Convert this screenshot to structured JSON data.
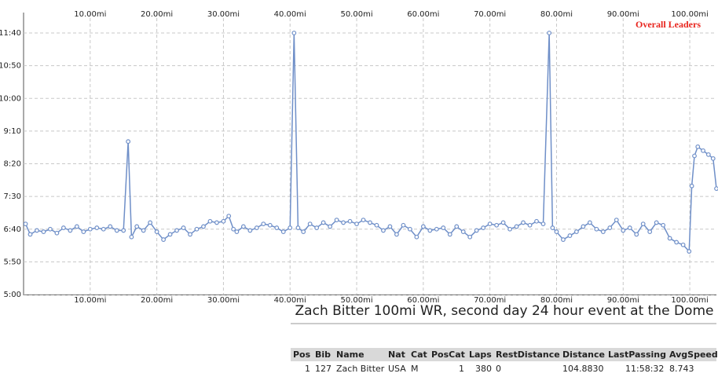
{
  "chart_data": {
    "type": "line",
    "caption": "Zach Bitter 100mi WR, second day 24 hour event at the Dome",
    "xlim": [
      0,
      104
    ],
    "xticks": [
      {
        "value": 10,
        "label": "10.00mi"
      },
      {
        "value": 20,
        "label": "20.00mi"
      },
      {
        "value": 30,
        "label": "30.00mi"
      },
      {
        "value": 40,
        "label": "40.00mi"
      },
      {
        "value": 50,
        "label": "50.00mi"
      },
      {
        "value": 60,
        "label": "60.00mi"
      },
      {
        "value": 70,
        "label": "70.00mi"
      },
      {
        "value": 80,
        "label": "80.00mi"
      },
      {
        "value": 90,
        "label": "90.00mi"
      },
      {
        "value": 100,
        "label": "100.00mi"
      }
    ],
    "ylim": [
      300,
      700
    ],
    "yticks": [
      {
        "value": 300,
        "label": "5:00"
      },
      {
        "value": 350,
        "label": "5:50"
      },
      {
        "value": 400,
        "label": "6:40"
      },
      {
        "value": 450,
        "label": "7:30"
      },
      {
        "value": 500,
        "label": "8:20"
      },
      {
        "value": 550,
        "label": "9:10"
      },
      {
        "value": 600,
        "label": "10:00"
      },
      {
        "value": 650,
        "label": "10:50"
      },
      {
        "value": 700,
        "label": "11:40"
      }
    ],
    "grid": true,
    "legend_color": "#e8231c",
    "series": [
      {
        "name": "Overall Leaders",
        "color": "#6f8fc8",
        "x": [
          0.3,
          1,
          2,
          3,
          4,
          5,
          6,
          7,
          8,
          9,
          10,
          11,
          12,
          13,
          14,
          15,
          15.7,
          16.2,
          17,
          18,
          19,
          20,
          21,
          22,
          23,
          24,
          25,
          26,
          27,
          28,
          29,
          30,
          30.8,
          31.5,
          32,
          33,
          34,
          35,
          36,
          37,
          38,
          39,
          40,
          40.6,
          41.2,
          42,
          43,
          44,
          45,
          46,
          47,
          48,
          49,
          50,
          51,
          52,
          53,
          54,
          55,
          56,
          57,
          58,
          59,
          60,
          61,
          62,
          63,
          64,
          65,
          66,
          67,
          68,
          69,
          70,
          71,
          72,
          73,
          74,
          75,
          76,
          77,
          78,
          78.9,
          79.4,
          80,
          81,
          82,
          83,
          84,
          85,
          86,
          87,
          88,
          89,
          90,
          91,
          92,
          93,
          94,
          95,
          96,
          97,
          98,
          99,
          99.9,
          100.3,
          100.7,
          101.2,
          102,
          102.8,
          103.5,
          104
        ],
        "values": [
          408,
          392,
          398,
          396,
          400,
          394,
          402,
          398,
          404,
          396,
          400,
          402,
          400,
          404,
          398,
          398,
          534,
          388,
          404,
          398,
          410,
          396,
          384,
          392,
          398,
          402,
          392,
          400,
          404,
          412,
          410,
          412,
          420,
          400,
          396,
          404,
          398,
          402,
          408,
          406,
          402,
          396,
          402,
          700,
          402,
          396,
          408,
          402,
          410,
          404,
          414,
          410,
          412,
          408,
          414,
          410,
          406,
          398,
          404,
          392,
          406,
          400,
          388,
          404,
          398,
          400,
          402,
          392,
          404,
          396,
          388,
          398,
          402,
          408,
          406,
          410,
          400,
          404,
          410,
          406,
          412,
          408,
          700,
          402,
          396,
          384,
          390,
          396,
          404,
          410,
          400,
          396,
          402,
          414,
          398,
          402,
          392,
          408,
          396,
          410,
          406,
          386,
          380,
          376,
          366,
          466,
          512,
          526,
          520,
          514,
          508,
          462
        ]
      }
    ]
  },
  "table": {
    "headers": [
      "Pos",
      "Bib",
      "Name",
      "Nat",
      "Cat",
      "PosCat",
      "Laps",
      "RestDistance",
      "Distance",
      "LastPassing",
      "AvgSpeed"
    ],
    "rows": [
      [
        "1",
        "127",
        "Zach Bitter",
        "USA",
        "M",
        "1",
        "380",
        "0",
        "104.8830",
        "11:58:32",
        "8.743"
      ]
    ]
  }
}
